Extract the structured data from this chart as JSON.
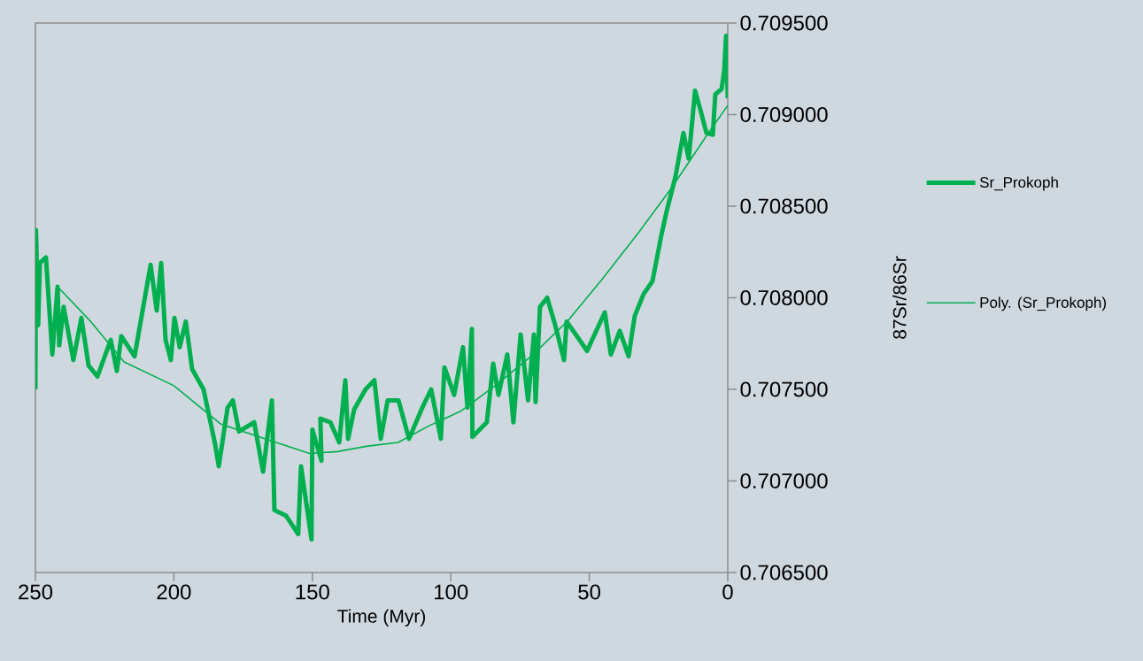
{
  "chart_data": {
    "type": "line",
    "xlabel": "Time (Myr)",
    "ylabel": "87Sr/86Sr",
    "xlim": [
      250,
      0
    ],
    "xticks": [
      250,
      200,
      150,
      100,
      50,
      0
    ],
    "ylim": [
      0.7065,
      0.7095
    ],
    "yticks": [
      {
        "value": 0.7065,
        "label": "0.706500"
      },
      {
        "value": 0.707,
        "label": "0.707000"
      },
      {
        "value": 0.7075,
        "label": "0.707500"
      },
      {
        "value": 0.708,
        "label": "0.708000"
      },
      {
        "value": 0.7085,
        "label": "0.708500"
      },
      {
        "value": 0.709,
        "label": "0.709000"
      },
      {
        "value": 0.7095,
        "label": "0.709500"
      }
    ],
    "legend": "right",
    "series": [
      {
        "name": "Sr_Prokoph",
        "color": "#00b050",
        "x": [
          250,
          249.8,
          249,
          248.4,
          246.2,
          243.9,
          242,
          241.4,
          239.8,
          236.3,
          233.4,
          230.8,
          227.6,
          222.8,
          220.6,
          219,
          214.2,
          208.4,
          206.2,
          204.6,
          203,
          201.1,
          199.8,
          197.9,
          195.7,
          193.4,
          189.3,
          185.1,
          183.8,
          180.6,
          178.7,
          176.5,
          171,
          167.8,
          164.6,
          163.7,
          159.5,
          155.1,
          154.1,
          150.3,
          150,
          146.7,
          147.1,
          143.5,
          140.3,
          138.1,
          137.1,
          134.9,
          130.8,
          127.6,
          125.3,
          122.8,
          118.9,
          115.1,
          110.3,
          107.1,
          103.6,
          102.3,
          98.8,
          95.6,
          94,
          92.4,
          92.2,
          87,
          84.7,
          82.8,
          79.6,
          77.4,
          74.8,
          72.1,
          70,
          69.4,
          67.8,
          65.2,
          62.3,
          59.1,
          58.2,
          54,
          50.8,
          44.4,
          42.2,
          39,
          35.8,
          33.6,
          30.4,
          27.2,
          24,
          22.1,
          18.9,
          16,
          14.1,
          11.8,
          9.6,
          7.7,
          5.4,
          4.5,
          2.2,
          1.3,
          0.6,
          0
        ],
        "values": [
          0.7075,
          0.70837,
          0.70785,
          0.70819,
          0.70822,
          0.70769,
          0.70806,
          0.70774,
          0.70795,
          0.70766,
          0.70789,
          0.70763,
          0.70757,
          0.70777,
          0.7076,
          0.70779,
          0.70768,
          0.70818,
          0.70793,
          0.70819,
          0.70777,
          0.70766,
          0.70789,
          0.70773,
          0.70787,
          0.70761,
          0.7075,
          0.7072,
          0.70708,
          0.7074,
          0.70744,
          0.70727,
          0.70732,
          0.70705,
          0.70744,
          0.70684,
          0.70681,
          0.70671,
          0.70708,
          0.70668,
          0.70728,
          0.70711,
          0.70734,
          0.70732,
          0.70721,
          0.70755,
          0.70723,
          0.70739,
          0.7075,
          0.70755,
          0.70723,
          0.70744,
          0.70744,
          0.70723,
          0.7074,
          0.7075,
          0.70723,
          0.70762,
          0.70747,
          0.70773,
          0.7074,
          0.70783,
          0.70724,
          0.70732,
          0.70764,
          0.70747,
          0.70769,
          0.70732,
          0.7078,
          0.70744,
          0.7078,
          0.70743,
          0.70795,
          0.708,
          0.70785,
          0.70766,
          0.70787,
          0.70778,
          0.70771,
          0.70792,
          0.70769,
          0.70782,
          0.70768,
          0.7079,
          0.70802,
          0.70809,
          0.70834,
          0.70847,
          0.70866,
          0.7089,
          0.70876,
          0.70913,
          0.70901,
          0.7089,
          0.70889,
          0.70911,
          0.70914,
          0.70924,
          0.70943,
          0.70909
        ]
      },
      {
        "name": "Poly. (Sr_Prokoph)",
        "color": "#00b050",
        "x": [
          242,
          230,
          218,
          200,
          183,
          165,
          151,
          141,
          130,
          119,
          108,
          96.5,
          84,
          71,
          58,
          45.4,
          32,
          19.8,
          7,
          0
        ],
        "values": [
          0.70806,
          0.70787,
          0.70765,
          0.70752,
          0.70731,
          0.70722,
          0.70715,
          0.70716,
          0.70719,
          0.70721,
          0.7073,
          0.70738,
          0.70752,
          0.70768,
          0.70787,
          0.7081,
          0.70836,
          0.70861,
          0.7089,
          0.70905
        ]
      }
    ]
  }
}
